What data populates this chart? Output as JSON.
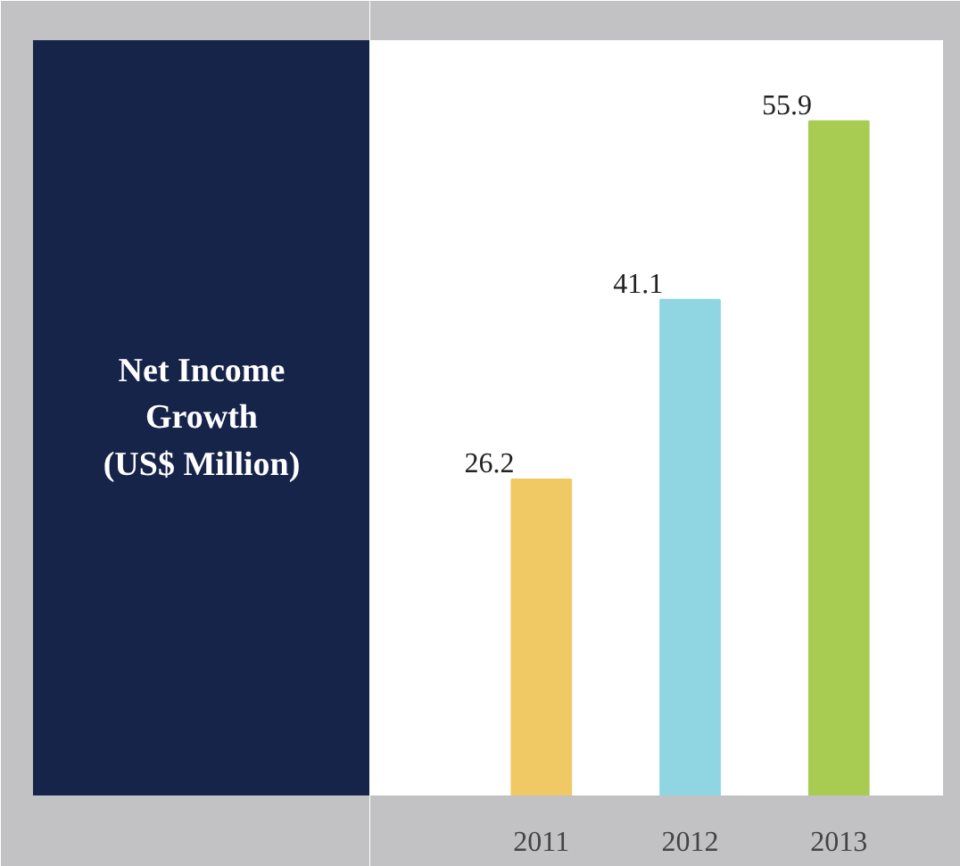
{
  "chart_data": {
    "type": "bar",
    "title": "Net Income\nGrowth\n(US$ Million)",
    "categories": [
      "2011",
      "2012",
      "2013"
    ],
    "values": [
      26.2,
      41.1,
      55.9
    ],
    "colors": [
      "#f0c964",
      "#8fd5e2",
      "#a8cc52"
    ],
    "data_labels": true,
    "grid": false
  }
}
